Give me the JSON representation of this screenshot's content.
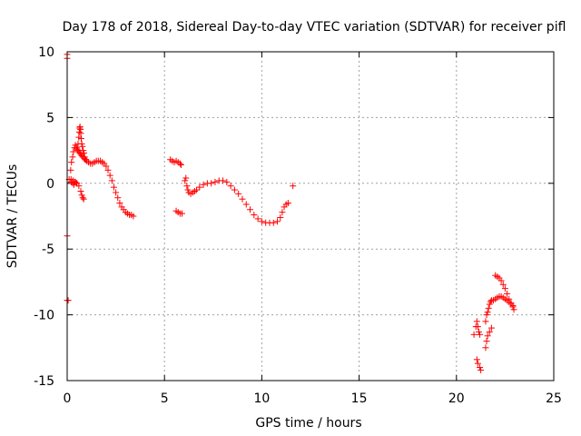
{
  "chart_data": {
    "type": "scatter",
    "title": "Day 178 of 2018, Sidereal Day-to-day VTEC variation (SDTVAR) for receiver pifl",
    "xlabel": "GPS time / hours",
    "ylabel": "SDTVAR / TECUs",
    "xlim": [
      0,
      25
    ],
    "ylim": [
      -15,
      10
    ],
    "xticks": [
      "0",
      "5",
      "10",
      "15",
      "20",
      "25"
    ],
    "yticks": [
      "10",
      "5",
      "0",
      "-5",
      "-10",
      "-15"
    ],
    "grid": true,
    "marker": "plus",
    "color": "#ff0000",
    "series": [
      {
        "name": "SDTVAR",
        "x": [
          0.0,
          0.0,
          0.0,
          0.0,
          0.05,
          0.1,
          0.18,
          0.22,
          0.28,
          0.32,
          0.38,
          0.42,
          0.48,
          0.55,
          0.6,
          0.65,
          0.7,
          0.75,
          0.8,
          0.88,
          0.92,
          1.0,
          1.1,
          1.2,
          1.3,
          1.4,
          1.5,
          1.6,
          1.7,
          1.8,
          1.9,
          2.0,
          2.1,
          2.2,
          2.3,
          2.4,
          2.5,
          2.6,
          2.7,
          2.8,
          2.9,
          3.0,
          3.1,
          3.2,
          3.3,
          3.4,
          0.2,
          0.28,
          0.35,
          0.42,
          0.48,
          0.52,
          0.56,
          0.6,
          0.62,
          0.64,
          0.66,
          0.68,
          0.7,
          0.72,
          0.75,
          0.78,
          0.82,
          0.86,
          0.9,
          0.95,
          0.2,
          0.3,
          0.4,
          0.5,
          0.6,
          0.7,
          0.75,
          0.8,
          0.85,
          5.3,
          5.4,
          5.5,
          5.6,
          5.7,
          5.8,
          5.85,
          5.6,
          5.7,
          5.8,
          5.9,
          6.05,
          6.1,
          6.15,
          6.2,
          6.25,
          6.35,
          6.45,
          6.55,
          6.65,
          6.8,
          7.0,
          7.2,
          7.4,
          7.6,
          7.8,
          8.0,
          8.2,
          8.4,
          8.6,
          8.8,
          9.0,
          9.2,
          9.4,
          9.6,
          9.8,
          10.0,
          10.2,
          10.4,
          10.6,
          10.8,
          10.95,
          11.05,
          11.15,
          11.25,
          11.35,
          11.6,
          20.9,
          21.0,
          21.05,
          21.1,
          21.15,
          21.2,
          21.05,
          21.1,
          21.2,
          21.25,
          21.5,
          21.55,
          21.6,
          21.65,
          21.7,
          21.75,
          21.8,
          21.5,
          21.55,
          21.6,
          21.7,
          21.8,
          21.9,
          22.0,
          22.1,
          22.2,
          22.3,
          22.4,
          22.5,
          22.6,
          22.7,
          22.8,
          22.9,
          22.95,
          22.0,
          22.1,
          22.2,
          22.3,
          22.4,
          22.5,
          22.6,
          22.7,
          22.8,
          22.9
        ],
        "y": [
          9.8,
          9.5,
          -4.0,
          -8.9,
          -8.9,
          0.3,
          1.0,
          1.6,
          2.0,
          2.4,
          2.7,
          2.9,
          2.7,
          2.5,
          2.4,
          2.3,
          2.2,
          2.1,
          2.0,
          1.9,
          1.8,
          1.7,
          1.6,
          1.5,
          1.5,
          1.6,
          1.7,
          1.7,
          1.7,
          1.6,
          1.5,
          1.3,
          1.0,
          0.6,
          0.2,
          -0.3,
          -0.7,
          -1.1,
          -1.5,
          -1.8,
          -2.0,
          -2.2,
          -2.3,
          -2.4,
          -2.4,
          -2.5,
          0.1,
          0.0,
          -0.1,
          0.1,
          0.0,
          2.6,
          3.0,
          3.5,
          3.9,
          4.2,
          4.3,
          4.1,
          3.8,
          3.4,
          3.0,
          2.8,
          2.5,
          2.3,
          2.0,
          1.8,
          0.3,
          0.2,
          0.1,
          0.0,
          -0.2,
          -0.6,
          -0.9,
          -1.1,
          -1.2,
          1.8,
          1.7,
          1.6,
          1.7,
          1.6,
          1.5,
          1.4,
          -2.1,
          -2.2,
          -2.3,
          -2.3,
          0.2,
          0.4,
          -0.2,
          -0.5,
          -0.7,
          -0.8,
          -0.7,
          -0.6,
          -0.5,
          -0.3,
          -0.1,
          0.0,
          0.0,
          0.1,
          0.2,
          0.2,
          0.1,
          -0.2,
          -0.5,
          -0.8,
          -1.2,
          -1.6,
          -2.0,
          -2.4,
          -2.7,
          -2.9,
          -3.0,
          -3.0,
          -3.0,
          -2.9,
          -2.6,
          -2.2,
          -1.8,
          -1.6,
          -1.5,
          -0.2,
          -11.5,
          -10.9,
          -10.5,
          -10.9,
          -11.3,
          -11.5,
          -13.4,
          -13.7,
          -14.0,
          -14.2,
          -10.5,
          -10.0,
          -9.8,
          -9.5,
          -9.2,
          -9.0,
          -8.9,
          -12.5,
          -12.0,
          -11.6,
          -11.3,
          -11.0,
          -8.9,
          -8.8,
          -8.7,
          -8.6,
          -8.6,
          -8.7,
          -8.8,
          -8.9,
          -9.0,
          -9.2,
          -9.4,
          -9.6,
          -7.0,
          -7.1,
          -7.2,
          -7.4,
          -7.7,
          -8.0,
          -8.4,
          -8.8,
          -9.1,
          -9.3
        ]
      }
    ]
  }
}
